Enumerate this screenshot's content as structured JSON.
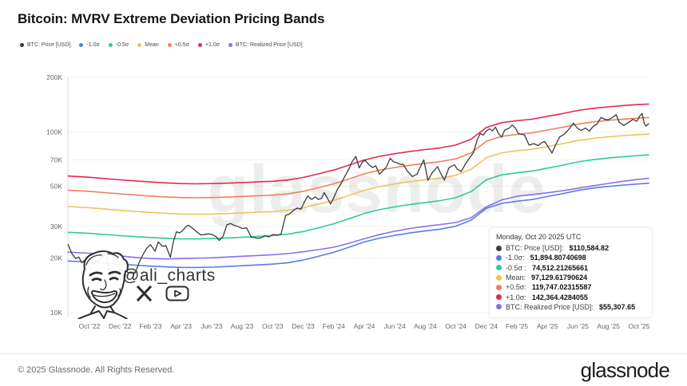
{
  "header": {
    "title": "Bitcoin: MVRV Extreme Deviation Pricing Bands"
  },
  "colors": {
    "price": "#3b3b3b",
    "minus1": "#5b7ce6",
    "minus05": "#2ec9a0",
    "mean": "#efc15c",
    "plus05": "#f07f5f",
    "plus1": "#e22a52",
    "realized": "#8b70e8",
    "grid": "#f2f2f2",
    "axis": "#d9d9d9"
  },
  "legend": {
    "items": [
      {
        "key": "price",
        "color_key": "price",
        "label": "BTC: Price [USD]"
      },
      {
        "key": "minus1",
        "color_key": "minus1",
        "label": "-1.0σ"
      },
      {
        "key": "minus05",
        "color_key": "minus05",
        "label": "-0.5σ"
      },
      {
        "key": "mean",
        "color_key": "mean",
        "label": "Mean"
      },
      {
        "key": "plus05",
        "color_key": "plus05",
        "label": "+0.5σ"
      },
      {
        "key": "plus1",
        "color_key": "plus1",
        "label": "+1.0σ"
      },
      {
        "key": "realized",
        "color_key": "realized",
        "label": "BTC: Realized Price [USD]"
      }
    ]
  },
  "tooltip": {
    "date": "Monday, Oct 20 2025 UTC",
    "rows": [
      {
        "color_key": "price",
        "label": "BTC: Price [USD]:",
        "value": "$110,584.82"
      },
      {
        "color_key": "minus1",
        "label": "-1.0σ:",
        "value": "51,894.80740698"
      },
      {
        "color_key": "minus05",
        "label": "-0.5σ :",
        "value": "74,512.21265661"
      },
      {
        "color_key": "mean",
        "label": "Mean:",
        "value": "97,129.61790624"
      },
      {
        "color_key": "plus05",
        "label": "+0.5σ:",
        "value": "119,747.02315587"
      },
      {
        "color_key": "plus1",
        "label": "+1.0σ:",
        "value": "142,364.4284055"
      },
      {
        "color_key": "realized",
        "label": "BTC: Realized Price [USD]:",
        "value": "$55,307.65"
      }
    ]
  },
  "watermarks": {
    "glassnode_text": "glassnode",
    "ali_handle": "@ali_charts"
  },
  "footer": {
    "copyright": "© 2025 Glassnode. All Rights Reserved.",
    "logo": "glassnode"
  },
  "chart_data": {
    "type": "line",
    "title": "Bitcoin: MVRV Extreme Deviation Pricing Bands",
    "x_unit": "months since Oct 2022",
    "y_scale": "log",
    "ylim": [
      10000,
      200000
    ],
    "grid": true,
    "legend_position": "top-left",
    "y_ticks": [
      {
        "v": 200000,
        "label": "200K"
      },
      {
        "v": 100000,
        "label": "100K"
      },
      {
        "v": 70000,
        "label": "70K"
      },
      {
        "v": 50000,
        "label": "50K"
      },
      {
        "v": 30000,
        "label": "30K"
      },
      {
        "v": 20000,
        "label": "20K"
      },
      {
        "v": 10000,
        "label": "10K"
      }
    ],
    "x_ticks": [
      {
        "t": 0,
        "label": "Oct '22"
      },
      {
        "t": 2,
        "label": "Dec '22"
      },
      {
        "t": 4,
        "label": "Feb '23"
      },
      {
        "t": 6,
        "label": "Apr '23"
      },
      {
        "t": 8,
        "label": "Jun '23"
      },
      {
        "t": 10,
        "label": "Aug '23"
      },
      {
        "t": 12,
        "label": "Oct '23"
      },
      {
        "t": 14,
        "label": "Dec '23"
      },
      {
        "t": 16,
        "label": "Feb '24"
      },
      {
        "t": 18,
        "label": "Apr '24"
      },
      {
        "t": 20,
        "label": "Jun '24"
      },
      {
        "t": 22,
        "label": "Aug '24"
      },
      {
        "t": 24,
        "label": "Oct '24"
      },
      {
        "t": 26,
        "label": "Dec '24"
      },
      {
        "t": 28,
        "label": "Feb '25"
      },
      {
        "t": 30,
        "label": "Apr '25"
      },
      {
        "t": 32,
        "label": "Jun '25"
      },
      {
        "t": 34,
        "label": "Aug '25"
      },
      {
        "t": 36,
        "label": "Oct '25"
      }
    ],
    "latest_values": {
      "date": "Monday, Oct 20 2025 UTC",
      "btc_price_usd": 110584.82,
      "minus_1sigma": 51894.80740698,
      "minus_05sigma": 74512.21265661,
      "mean": 97129.61790624,
      "plus_05sigma": 119747.02315587,
      "plus_1sigma": 142364.4284055,
      "btc_realized_price_usd": 55307.65
    },
    "band_defs": [
      {
        "key": "plus1",
        "name": "+1.0σ",
        "color_key": "plus1",
        "mult_start": 1.475,
        "mult_end": 1.4657
      },
      {
        "key": "plus05",
        "name": "+0.5σ",
        "color_key": "plus05",
        "mult_start": 1.233,
        "mult_end": 1.2329
      },
      {
        "key": "minus05",
        "name": "-0.5σ",
        "color_key": "minus05",
        "mult_start": 0.72,
        "mult_end": 0.7671
      },
      {
        "key": "minus1",
        "name": "-1.0σ",
        "color_key": "minus1",
        "mult_start": 0.5,
        "mult_end": 0.5343
      }
    ],
    "series": [
      {
        "key": "mean",
        "name": "Mean",
        "color_key": "mean",
        "points": [
          [
            -1.4,
            38600
          ],
          [
            0,
            38000
          ],
          [
            1,
            37400
          ],
          [
            2,
            36800
          ],
          [
            3,
            36300
          ],
          [
            4,
            35800
          ],
          [
            5,
            35400
          ],
          [
            6,
            35100
          ],
          [
            7,
            35000
          ],
          [
            8,
            35100
          ],
          [
            9,
            35300
          ],
          [
            10,
            35600
          ],
          [
            11,
            35900
          ],
          [
            12,
            36200
          ],
          [
            13,
            36800
          ],
          [
            14,
            38000
          ],
          [
            15,
            39800
          ],
          [
            16,
            41800
          ],
          [
            17,
            44500
          ],
          [
            18,
            47500
          ],
          [
            19,
            49800
          ],
          [
            20,
            51500
          ],
          [
            21,
            53000
          ],
          [
            22,
            54300
          ],
          [
            23,
            55500
          ],
          [
            24,
            57500
          ],
          [
            25,
            62000
          ],
          [
            26,
            72000
          ],
          [
            27,
            76500
          ],
          [
            28,
            78500
          ],
          [
            29,
            80000
          ],
          [
            30,
            83000
          ],
          [
            31,
            86000
          ],
          [
            32,
            89500
          ],
          [
            33,
            92000
          ],
          [
            34,
            93800
          ],
          [
            35,
            95300
          ],
          [
            36,
            96500
          ],
          [
            36.63,
            97130
          ]
        ]
      },
      {
        "key": "realized",
        "name": "BTC: Realized Price [USD]",
        "color_key": "realized",
        "points": [
          [
            -1.4,
            21600
          ],
          [
            0,
            21300
          ],
          [
            1,
            21000
          ],
          [
            2,
            20600
          ],
          [
            3,
            20200
          ],
          [
            4,
            19900
          ],
          [
            5,
            19800
          ],
          [
            6,
            19900
          ],
          [
            7,
            20000
          ],
          [
            8,
            20100
          ],
          [
            9,
            20300
          ],
          [
            10,
            20500
          ],
          [
            11,
            20700
          ],
          [
            12,
            20900
          ],
          [
            13,
            21200
          ],
          [
            14,
            21700
          ],
          [
            15,
            22300
          ],
          [
            16,
            23000
          ],
          [
            17,
            24200
          ],
          [
            18,
            25600
          ],
          [
            19,
            27000
          ],
          [
            20,
            28200
          ],
          [
            21,
            29200
          ],
          [
            22,
            30000
          ],
          [
            23,
            30700
          ],
          [
            24,
            31500
          ],
          [
            25,
            33500
          ],
          [
            26,
            38500
          ],
          [
            27,
            42000
          ],
          [
            28,
            44000
          ],
          [
            29,
            45000
          ],
          [
            30,
            46000
          ],
          [
            31,
            47200
          ],
          [
            32,
            48800
          ],
          [
            33,
            50300
          ],
          [
            34,
            51800
          ],
          [
            35,
            53300
          ],
          [
            36,
            54600
          ],
          [
            36.63,
            55308
          ]
        ]
      },
      {
        "key": "price",
        "name": "BTC: Price [USD]",
        "color_key": "price",
        "points": [
          [
            -1.4,
            23800
          ],
          [
            -1.15,
            21200
          ],
          [
            -0.9,
            19900
          ],
          [
            -0.7,
            20300
          ],
          [
            -0.5,
            18900
          ],
          [
            -0.25,
            19600
          ],
          [
            0,
            19300
          ],
          [
            0.3,
            19600
          ],
          [
            0.55,
            19100
          ],
          [
            0.9,
            20500
          ],
          [
            1.1,
            21000
          ],
          [
            1.35,
            16300
          ],
          [
            1.55,
            16700
          ],
          [
            1.7,
            15900
          ],
          [
            2,
            17150
          ],
          [
            2.3,
            16900
          ],
          [
            2.55,
            16650
          ],
          [
            2.8,
            16550
          ],
          [
            3,
            16600
          ],
          [
            3.25,
            18900
          ],
          [
            3.5,
            20900
          ],
          [
            3.75,
            22700
          ],
          [
            4,
            23750
          ],
          [
            4.3,
            21850
          ],
          [
            4.5,
            24600
          ],
          [
            4.8,
            23250
          ],
          [
            5,
            23500
          ],
          [
            5.3,
            20250
          ],
          [
            5.5,
            24750
          ],
          [
            5.7,
            28000
          ],
          [
            5.9,
            27600
          ],
          [
            6.1,
            28400
          ],
          [
            6.35,
            30100
          ],
          [
            6.5,
            30400
          ],
          [
            6.75,
            29250
          ],
          [
            7,
            28100
          ],
          [
            7.3,
            26900
          ],
          [
            7.5,
            27000
          ],
          [
            7.75,
            27250
          ],
          [
            8,
            27100
          ],
          [
            8.3,
            26300
          ],
          [
            8.5,
            25100
          ],
          [
            8.75,
            26400
          ],
          [
            9,
            30600
          ],
          [
            9.25,
            31100
          ],
          [
            9.5,
            30300
          ],
          [
            9.75,
            29900
          ],
          [
            10,
            29200
          ],
          [
            10.3,
            29400
          ],
          [
            10.6,
            26100
          ],
          [
            10.8,
            26050
          ],
          [
            11,
            25800
          ],
          [
            11.25,
            25950
          ],
          [
            11.5,
            26600
          ],
          [
            11.75,
            26250
          ],
          [
            12,
            27000
          ],
          [
            12.3,
            26850
          ],
          [
            12.55,
            27200
          ],
          [
            12.85,
            34500
          ],
          [
            13.1,
            35100
          ],
          [
            13.35,
            36700
          ],
          [
            13.6,
            37850
          ],
          [
            13.85,
            37300
          ],
          [
            14.1,
            41300
          ],
          [
            14.3,
            44200
          ],
          [
            14.55,
            42250
          ],
          [
            14.8,
            43700
          ],
          [
            15,
            42300
          ],
          [
            15.2,
            42900
          ],
          [
            15.38,
            46100
          ],
          [
            15.6,
            42700
          ],
          [
            15.8,
            39900
          ],
          [
            16,
            43100
          ],
          [
            16.25,
            48200
          ],
          [
            16.5,
            52100
          ],
          [
            16.75,
            57200
          ],
          [
            17,
            62400
          ],
          [
            17.2,
            68300
          ],
          [
            17.45,
            73100
          ],
          [
            17.67,
            63100
          ],
          [
            17.85,
            67500
          ],
          [
            18.05,
            69700
          ],
          [
            18.3,
            66000
          ],
          [
            18.55,
            63400
          ],
          [
            18.75,
            64900
          ],
          [
            19,
            58300
          ],
          [
            19.2,
            60600
          ],
          [
            19.45,
            63900
          ],
          [
            19.7,
            71400
          ],
          [
            19.9,
            68400
          ],
          [
            20.1,
            67700
          ],
          [
            20.35,
            66000
          ],
          [
            20.55,
            66200
          ],
          [
            20.8,
            61000
          ],
          [
            21.15,
            56600
          ],
          [
            21.45,
            58100
          ],
          [
            21.7,
            64700
          ],
          [
            21.9,
            69900
          ],
          [
            22.17,
            53900
          ],
          [
            22.45,
            59300
          ],
          [
            22.8,
            64200
          ],
          [
            23,
            59100
          ],
          [
            23.25,
            54100
          ],
          [
            23.55,
            63200
          ],
          [
            23.9,
            65800
          ],
          [
            24.1,
            62100
          ],
          [
            24.35,
            60300
          ],
          [
            24.65,
            67000
          ],
          [
            24.95,
            72700
          ],
          [
            25.15,
            76500
          ],
          [
            25.4,
            90500
          ],
          [
            25.6,
            97900
          ],
          [
            25.8,
            95900
          ],
          [
            26,
            101200
          ],
          [
            26.2,
            103900
          ],
          [
            26.4,
            101400
          ],
          [
            26.6,
            106100
          ],
          [
            26.8,
            97500
          ],
          [
            27,
            93400
          ],
          [
            27.2,
            102300
          ],
          [
            27.5,
            104700
          ],
          [
            27.7,
            109100
          ],
          [
            27.9,
            104800
          ],
          [
            28.1,
            97700
          ],
          [
            28.5,
            96100
          ],
          [
            28.8,
            84350
          ],
          [
            29.1,
            86000
          ],
          [
            29.4,
            83900
          ],
          [
            29.6,
            86900
          ],
          [
            29.8,
            88500
          ],
          [
            30.05,
            82500
          ],
          [
            30.3,
            76300
          ],
          [
            30.55,
            85200
          ],
          [
            30.8,
            93700
          ],
          [
            31.1,
            97000
          ],
          [
            31.4,
            103300
          ],
          [
            31.7,
            111700
          ],
          [
            31.95,
            105000
          ],
          [
            32.2,
            101600
          ],
          [
            32.5,
            104800
          ],
          [
            32.75,
            101000
          ],
          [
            33,
            107200
          ],
          [
            33.25,
            110300
          ],
          [
            33.5,
            119900
          ],
          [
            33.75,
            117400
          ],
          [
            34,
            116500
          ],
          [
            34.2,
            119000
          ],
          [
            34.5,
            124400
          ],
          [
            34.7,
            113000
          ],
          [
            35,
            108400
          ],
          [
            35.3,
            112500
          ],
          [
            35.6,
            117100
          ],
          [
            35.85,
            114300
          ],
          [
            36.05,
            122500
          ],
          [
            36.2,
            126200
          ],
          [
            36.35,
            111000
          ],
          [
            36.45,
            107500
          ],
          [
            36.63,
            110585
          ]
        ]
      }
    ]
  }
}
